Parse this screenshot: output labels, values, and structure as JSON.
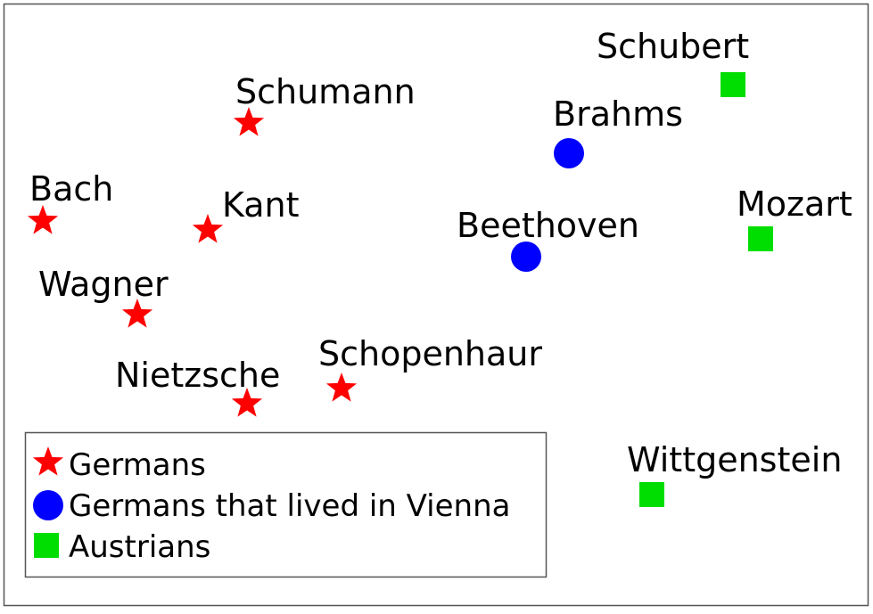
{
  "colors": {
    "germans": "#ff0000",
    "vienna": "#0000ff",
    "austrians": "#00dd00",
    "frame": "#555555"
  },
  "markers": {
    "germans": "red-star-icon",
    "vienna": "blue-circle-icon",
    "austrians": "green-square-icon"
  },
  "people": [
    {
      "id": "schumann",
      "name": "Schumann",
      "group": "germans"
    },
    {
      "id": "bach",
      "name": "Bach",
      "group": "germans"
    },
    {
      "id": "kant",
      "name": "Kant",
      "group": "germans"
    },
    {
      "id": "wagner",
      "name": "Wagner",
      "group": "germans"
    },
    {
      "id": "nietzsche",
      "name": "Nietzsche",
      "group": "germans"
    },
    {
      "id": "schopenhauer",
      "name": "Schopenhaur",
      "group": "germans"
    },
    {
      "id": "brahms",
      "name": "Brahms",
      "group": "vienna"
    },
    {
      "id": "beethoven",
      "name": "Beethoven",
      "group": "vienna"
    },
    {
      "id": "schubert",
      "name": "Schubert",
      "group": "austrians"
    },
    {
      "id": "mozart",
      "name": "Mozart",
      "group": "austrians"
    },
    {
      "id": "wittgenstein",
      "name": "Wittgenstein",
      "group": "austrians"
    }
  ],
  "legend": {
    "germans": "Germans",
    "vienna": "Germans that lived in Vienna",
    "austrians": "Austrians"
  }
}
